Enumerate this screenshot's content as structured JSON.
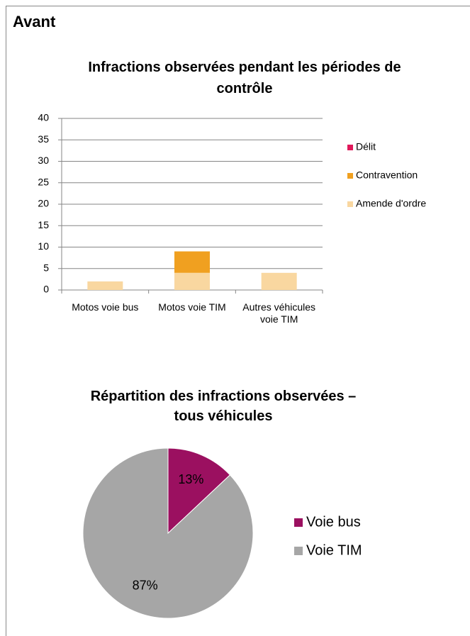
{
  "header": {
    "title": "Avant"
  },
  "chart_data": [
    {
      "type": "bar",
      "stacked": true,
      "title": "Infractions observées pendant les périodes de contrôle",
      "categories": [
        "Motos voie bus",
        "Motos voie TIM",
        "Autres véhicules voie TIM"
      ],
      "series": [
        {
          "name": "Amende d'ordre",
          "color": "#f9d7a0",
          "values": [
            2,
            4,
            4
          ]
        },
        {
          "name": "Contravention",
          "color": "#f0a020",
          "values": [
            0,
            5,
            0
          ]
        },
        {
          "name": "Délit",
          "color": "#e0185a",
          "values": [
            0,
            0,
            0
          ]
        }
      ],
      "ylim": [
        0,
        40
      ],
      "yticks": [
        0,
        5,
        10,
        15,
        20,
        25,
        30,
        35,
        40
      ],
      "grid": true,
      "legend": "right"
    },
    {
      "type": "pie",
      "title": "Répartition des infractions observées – tous véhicules",
      "categories": [
        "Voie bus",
        "Voie TIM"
      ],
      "values": [
        13,
        87
      ],
      "value_labels": [
        "13%",
        "87%"
      ],
      "colors": [
        "#9b1060",
        "#a6a6a6"
      ],
      "legend": "right"
    }
  ]
}
